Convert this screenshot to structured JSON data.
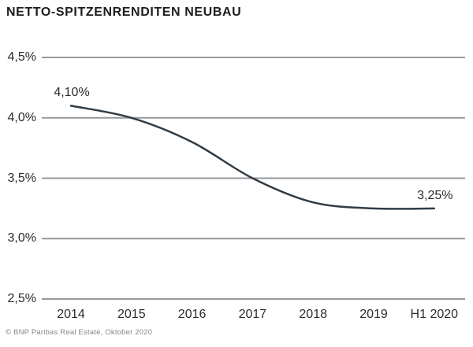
{
  "header": {
    "title": "NETTO-SPITZENRENDITEN NEUBAU"
  },
  "footer": {
    "credit": "© BNP Paribas Real Estate, Oktober 2020"
  },
  "colors": {
    "series_line": "#303c46",
    "gridline": "#999999",
    "title_text": "#1d1d1b",
    "axis_text": "#2b2b2b",
    "credit_text": "#878787",
    "background": "#ffffff"
  },
  "chart_data": {
    "type": "line",
    "title": "NETTO-SPITZENRENDITEN NEUBAU",
    "categories": [
      "2014",
      "2015",
      "2016",
      "2017",
      "2018",
      "2019",
      "H1 2020"
    ],
    "values": [
      4.1,
      4.0,
      3.8,
      3.5,
      3.3,
      3.25,
      3.25
    ],
    "xlabel": "",
    "ylabel": "",
    "ylim": [
      2.5,
      4.5
    ],
    "ytick_step": 0.5,
    "ytick_labels": [
      "4,5%",
      "4,0%",
      "3,5%",
      "3,0%",
      "2,5%"
    ],
    "grid": true,
    "legend_position": "none",
    "point_labels": {
      "first": "4,10%",
      "last": "3,25%"
    }
  }
}
